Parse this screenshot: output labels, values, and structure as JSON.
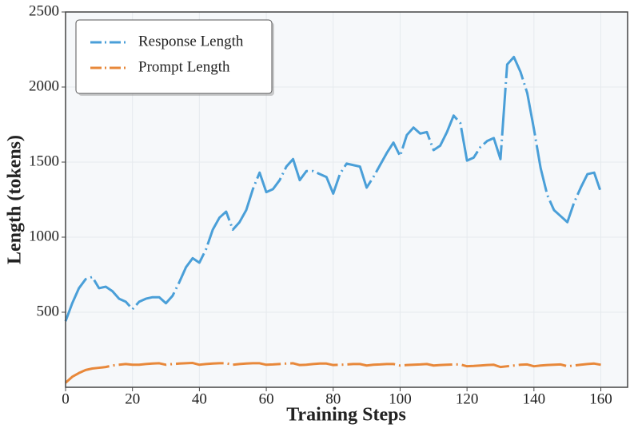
{
  "chart_data": {
    "type": "line",
    "xlabel": "Training Steps",
    "ylabel": "Length (tokens)",
    "x": [
      0,
      2,
      4,
      6,
      8,
      10,
      12,
      14,
      16,
      18,
      20,
      22,
      24,
      26,
      28,
      30,
      32,
      34,
      36,
      38,
      40,
      42,
      44,
      46,
      48,
      50,
      52,
      54,
      56,
      58,
      60,
      62,
      64,
      66,
      68,
      70,
      72,
      74,
      76,
      78,
      80,
      82,
      84,
      86,
      88,
      90,
      92,
      94,
      96,
      98,
      100,
      102,
      104,
      106,
      108,
      110,
      112,
      114,
      116,
      118,
      120,
      122,
      124,
      126,
      128,
      130,
      132,
      134,
      136,
      138,
      140,
      142,
      144,
      146,
      148,
      150,
      152,
      154,
      156,
      158,
      160
    ],
    "series": [
      {
        "name": "Response Length",
        "color": "#4a9fd8",
        "values": [
          440,
          560,
          660,
          720,
          735,
          660,
          670,
          640,
          590,
          570,
          520,
          570,
          590,
          600,
          600,
          560,
          610,
          700,
          800,
          860,
          830,
          920,
          1050,
          1130,
          1170,
          1050,
          1100,
          1180,
          1320,
          1430,
          1300,
          1320,
          1380,
          1470,
          1520,
          1380,
          1440,
          1440,
          1420,
          1400,
          1290,
          1420,
          1490,
          1480,
          1470,
          1330,
          1400,
          1480,
          1560,
          1630,
          1540,
          1680,
          1730,
          1690,
          1700,
          1580,
          1610,
          1700,
          1810,
          1760,
          1510,
          1530,
          1600,
          1640,
          1660,
          1520,
          2150,
          2200,
          2100,
          1960,
          1720,
          1460,
          1280,
          1180,
          1140,
          1100,
          1230,
          1330,
          1420,
          1430,
          1300
        ]
      },
      {
        "name": "Prompt Length",
        "color": "#e8883a",
        "values": [
          30,
          70,
          95,
          115,
          125,
          130,
          135,
          145,
          150,
          155,
          150,
          150,
          155,
          158,
          160,
          150,
          155,
          158,
          160,
          162,
          150,
          155,
          158,
          160,
          160,
          150,
          155,
          158,
          160,
          160,
          150,
          152,
          155,
          158,
          160,
          148,
          150,
          155,
          158,
          158,
          148,
          150,
          152,
          155,
          155,
          145,
          150,
          152,
          155,
          155,
          145,
          148,
          150,
          152,
          155,
          145,
          148,
          150,
          152,
          152,
          140,
          142,
          145,
          148,
          150,
          135,
          140,
          145,
          150,
          152,
          140,
          145,
          148,
          150,
          152,
          140,
          145,
          150,
          155,
          158,
          150
        ]
      }
    ],
    "xlim": [
      0,
      168
    ],
    "ylim": [
      0,
      2500
    ],
    "xticks": [
      0,
      20,
      40,
      60,
      80,
      100,
      120,
      140,
      160
    ],
    "yticks": [
      500,
      1000,
      1500,
      2000,
      2500
    ],
    "grid": true,
    "legend": "upper left"
  }
}
